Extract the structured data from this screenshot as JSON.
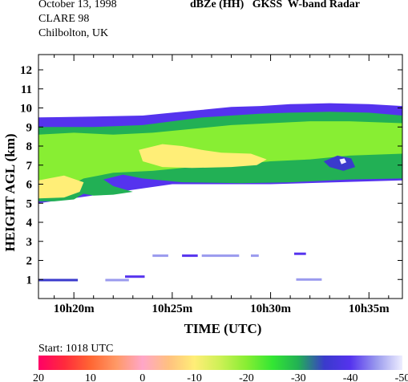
{
  "header": {
    "date": "October 13, 1998",
    "campaign": "CLARE 98",
    "location": "Chilbolton, UK",
    "title": "dBZe (HH)   GKSS  W-band Radar"
  },
  "footer": {
    "start": "Start:  1018 UTC"
  },
  "chart_data": {
    "type": "heatmap",
    "title": "dBZe (HH)   GKSS  W-band Radar",
    "xlabel": "TIME (UTC)",
    "ylabel": "HEIGHT AGL (km)",
    "x_ticks": [
      "10h20m",
      "10h25m",
      "10h30m",
      "10h35m"
    ],
    "x_tick_minutes": [
      20,
      25,
      30,
      35
    ],
    "xlim_minutes": [
      18.2,
      36.7
    ],
    "y_ticks": [
      1,
      2,
      3,
      4,
      5,
      6,
      7,
      8,
      9,
      10,
      11,
      12
    ],
    "ylim": [
      0,
      12.8
    ],
    "grid": false,
    "colorbar": {
      "labels": [
        "20",
        "10",
        "0",
        "-10",
        "-20",
        "-30",
        "-40",
        "-50"
      ],
      "range_dBZe": [
        20,
        -50
      ],
      "stops": [
        {
          "dbz": 20,
          "color": "#ff0066"
        },
        {
          "dbz": 15,
          "color": "#ff2a3c"
        },
        {
          "dbz": 10,
          "color": "#ff6633"
        },
        {
          "dbz": 5,
          "color": "#ff9966"
        },
        {
          "dbz": 0,
          "color": "#ffa6c8"
        },
        {
          "dbz": -5,
          "color": "#ffc080"
        },
        {
          "dbz": -10,
          "color": "#ffee77"
        },
        {
          "dbz": -15,
          "color": "#ccf055"
        },
        {
          "dbz": -20,
          "color": "#88ee33"
        },
        {
          "dbz": -25,
          "color": "#33e633"
        },
        {
          "dbz": -30,
          "color": "#22b055"
        },
        {
          "dbz": -35,
          "color": "#3a3acc"
        },
        {
          "dbz": -40,
          "color": "#5533ee"
        },
        {
          "dbz": -45,
          "color": "#9a9aee"
        },
        {
          "dbz": -50,
          "color": "#eeeeff"
        }
      ]
    },
    "echo_regions": [
      {
        "name": "cloud top edge",
        "dbz": -40,
        "outline": [
          [
            18.2,
            9.5
          ],
          [
            21,
            9.55
          ],
          [
            23.5,
            9.6
          ],
          [
            25,
            9.75
          ],
          [
            26.5,
            9.9
          ],
          [
            28,
            10.05
          ],
          [
            29.5,
            10.1
          ],
          [
            31,
            10.2
          ],
          [
            33,
            10.25
          ],
          [
            35,
            10.2
          ],
          [
            36.7,
            10.1
          ],
          [
            36.7,
            6.2
          ],
          [
            30,
            6.0
          ],
          [
            25,
            6.0
          ],
          [
            18.2,
            5.0
          ]
        ]
      },
      {
        "name": "main cloud body",
        "dbz": -28,
        "outline": [
          [
            18.2,
            9.0
          ],
          [
            21,
            9.0
          ],
          [
            23.5,
            9.1
          ],
          [
            25,
            9.3
          ],
          [
            26.5,
            9.5
          ],
          [
            28,
            9.6
          ],
          [
            29.5,
            9.7
          ],
          [
            31,
            9.75
          ],
          [
            33,
            9.8
          ],
          [
            35,
            9.75
          ],
          [
            36.7,
            9.6
          ],
          [
            36.7,
            6.3
          ],
          [
            34,
            6.25
          ],
          [
            31,
            6.1
          ],
          [
            28.5,
            6.05
          ],
          [
            25.5,
            6.1
          ],
          [
            23.5,
            6.3
          ],
          [
            22.5,
            6.5
          ],
          [
            21.5,
            6.25
          ],
          [
            22,
            5.9
          ],
          [
            23,
            5.6
          ],
          [
            22,
            5.45
          ],
          [
            21,
            5.4
          ],
          [
            20.5,
            5.5
          ],
          [
            20,
            5.2
          ],
          [
            19,
            5.1
          ],
          [
            18.2,
            5.1
          ]
        ]
      },
      {
        "name": "bright green band",
        "dbz": -22,
        "outline": [
          [
            18.2,
            8.6
          ],
          [
            20,
            8.7
          ],
          [
            22,
            8.6
          ],
          [
            24,
            8.7
          ],
          [
            26,
            8.9
          ],
          [
            28,
            9.1
          ],
          [
            30,
            9.2
          ],
          [
            32,
            9.3
          ],
          [
            34,
            9.3
          ],
          [
            36.7,
            9.2
          ],
          [
            36.7,
            7.6
          ],
          [
            34,
            7.5
          ],
          [
            32,
            7.3
          ],
          [
            30,
            7.2
          ],
          [
            28,
            7.0
          ],
          [
            26,
            6.9
          ],
          [
            24,
            6.7
          ],
          [
            22,
            6.6
          ],
          [
            20.5,
            6.3
          ],
          [
            19.5,
            5.8
          ],
          [
            18.2,
            5.6
          ]
        ]
      },
      {
        "name": "yellow core",
        "dbz": -11,
        "outline": [
          [
            23.3,
            7.8
          ],
          [
            24.5,
            8.1
          ],
          [
            25.5,
            8.0
          ],
          [
            26.5,
            7.8
          ],
          [
            27.5,
            7.65
          ],
          [
            29,
            7.6
          ],
          [
            29.8,
            7.3
          ],
          [
            29.3,
            7.0
          ],
          [
            28,
            6.9
          ],
          [
            26,
            6.85
          ],
          [
            24.5,
            6.9
          ],
          [
            23.5,
            7.2
          ]
        ]
      },
      {
        "name": "lower yellow patch",
        "dbz": -9,
        "outline": [
          [
            18.2,
            6.2
          ],
          [
            19.5,
            6.45
          ],
          [
            20.5,
            6.1
          ],
          [
            20.3,
            5.6
          ],
          [
            19.5,
            5.3
          ],
          [
            18.2,
            5.25
          ]
        ]
      },
      {
        "name": "top dark band",
        "dbz": -38,
        "outline": [
          [
            18.2,
            9.5
          ],
          [
            22,
            9.5
          ],
          [
            22,
            9.2
          ],
          [
            18.2,
            9.2
          ]
        ]
      },
      {
        "name": "embedded weak echo",
        "dbz": -37,
        "outline": [
          [
            32.7,
            7.2
          ],
          [
            33.4,
            7.5
          ],
          [
            34.1,
            7.35
          ],
          [
            34.3,
            6.9
          ],
          [
            33.7,
            6.7
          ],
          [
            33,
            6.9
          ]
        ]
      },
      {
        "name": "embedded core",
        "dbz": -48,
        "outline": [
          [
            33.5,
            7.3
          ],
          [
            33.75,
            7.35
          ],
          [
            33.85,
            7.15
          ],
          [
            33.6,
            7.05
          ]
        ]
      }
    ],
    "sparse_echoes": [
      {
        "x": [
          18.2,
          20.2
        ],
        "y": 0.97,
        "dbz": -33
      },
      {
        "x": [
          21.6,
          22.8
        ],
        "y": 0.97,
        "dbz": -45
      },
      {
        "x": [
          22.6,
          23.6
        ],
        "y": 1.15,
        "dbz": -42
      },
      {
        "x": [
          24.0,
          24.8
        ],
        "y": 2.25,
        "dbz": -45
      },
      {
        "x": [
          25.5,
          26.3
        ],
        "y": 2.25,
        "dbz": -42
      },
      {
        "x": [
          26.5,
          28.4
        ],
        "y": 2.25,
        "dbz": -46
      },
      {
        "x": [
          29.0,
          29.4
        ],
        "y": 2.25,
        "dbz": -46
      },
      {
        "x": [
          31.2,
          31.8
        ],
        "y": 2.35,
        "dbz": -42
      },
      {
        "x": [
          31.3,
          32.6
        ],
        "y": 1.0,
        "dbz": -46
      }
    ]
  }
}
